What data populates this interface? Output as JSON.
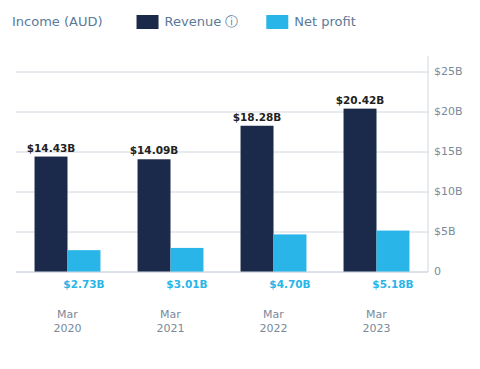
{
  "chart_data": {
    "type": "bar",
    "title": "Income (AUD)",
    "categories": [
      "Mar\n2020",
      "Mar\n2021",
      "Mar\n2022",
      "Mar\n2023"
    ],
    "series": [
      {
        "name": "Revenue ⓘ",
        "color": "#1b2a4a",
        "values": [
          14.43,
          14.09,
          18.28,
          20.42
        ],
        "value_labels": [
          "$14.43B",
          "$14.09B",
          "$18.28B",
          "$20.42B"
        ]
      },
      {
        "name": "Net profit",
        "color": "#29b5e8",
        "values": [
          2.73,
          3.01,
          4.7,
          5.18
        ],
        "value_labels": [
          "$2.73B",
          "$3.01B",
          "$4.70B",
          "$5.18B"
        ]
      }
    ],
    "ylim": [
      0,
      27
    ],
    "yticks": [
      0,
      {
        "value": 5,
        "label": "$5B"
      },
      {
        "value": 10,
        "label": "$10B"
      },
      {
        "value": 15,
        "label": "$15B"
      },
      {
        "value": 20,
        "label": "$20B"
      },
      {
        "value": 25,
        "label": "$25B"
      }
    ],
    "grid": true,
    "legend": "top",
    "data_labels": true
  }
}
